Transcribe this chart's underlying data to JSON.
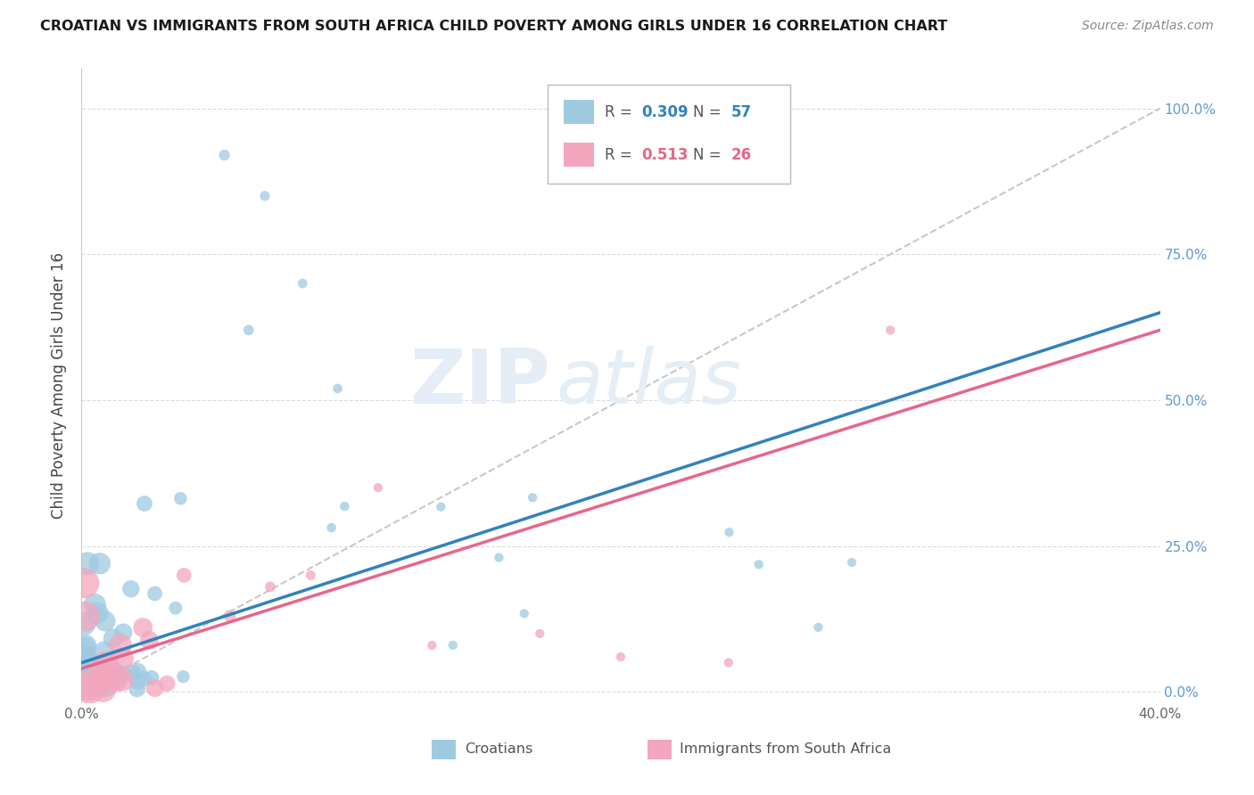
{
  "title": "CROATIAN VS IMMIGRANTS FROM SOUTH AFRICA CHILD POVERTY AMONG GIRLS UNDER 16 CORRELATION CHART",
  "source": "Source: ZipAtlas.com",
  "ylabel": "Child Poverty Among Girls Under 16",
  "ytick_labels": [
    "0.0%",
    "25.0%",
    "50.0%",
    "75.0%",
    "100.0%"
  ],
  "ytick_values": [
    0.0,
    0.25,
    0.5,
    0.75,
    1.0
  ],
  "xlim": [
    0.0,
    0.4
  ],
  "ylim": [
    -0.02,
    1.07
  ],
  "background_color": "#ffffff",
  "watermark_zip": "ZIP",
  "watermark_atlas": "atlas",
  "legend_croatian_R": "0.309",
  "legend_croatian_N": "57",
  "legend_southafrica_R": "0.513",
  "legend_southafrica_N": "26",
  "color_croatian": "#9ecae1",
  "color_southafrica": "#f4a6be",
  "color_trendline_croatian": "#3182bd",
  "color_trendline_southafrica": "#e8668a",
  "color_diagonal": "#bbbbbb",
  "grid_color": "#dddddd",
  "right_ytick_color": "#5b9bd5"
}
